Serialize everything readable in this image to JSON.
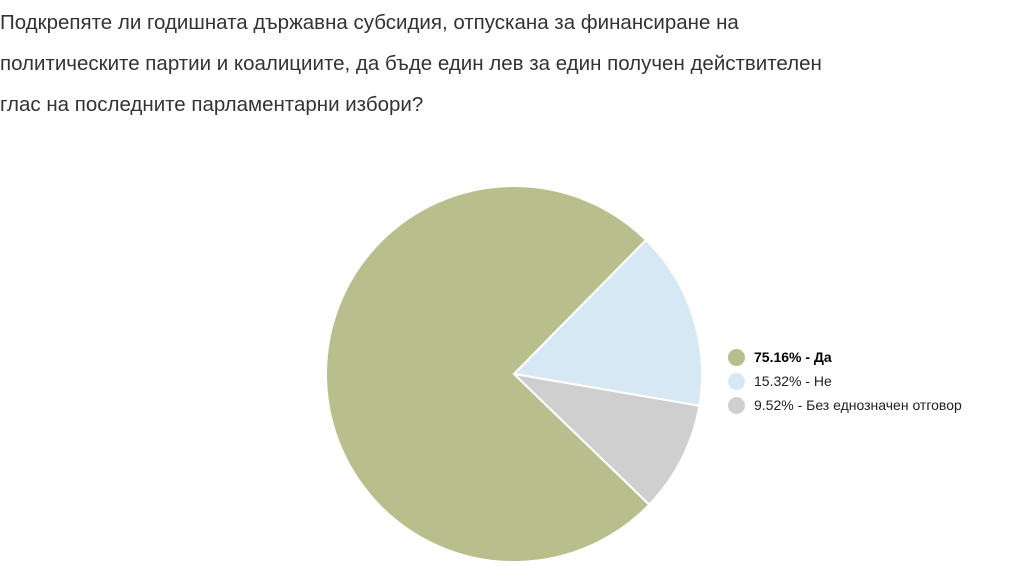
{
  "question": {
    "lines": [
      "Подкрепяте ли годишната държавна субсидия, отпускана за финансиране на",
      "политическите партии и коалициите, да бъде един лев за един получен действителен",
      "глас на последните парламентарни избори?"
    ]
  },
  "chart_data": {
    "type": "pie",
    "categories": [
      "Да",
      "Не",
      "Без еднозначен отговор"
    ],
    "values": [
      75.16,
      15.32,
      9.52
    ],
    "unit": "%",
    "colors": [
      "#b8bf8c",
      "#d6e8f3",
      "#cfcfcf"
    ],
    "labels": [
      "75.16% - Да",
      "15.32% - Не",
      "9.52% - Без еднозначен отговор"
    ],
    "start_angle_deg": 134,
    "legend_position": "right",
    "slice_border_color": "#ffffff"
  }
}
